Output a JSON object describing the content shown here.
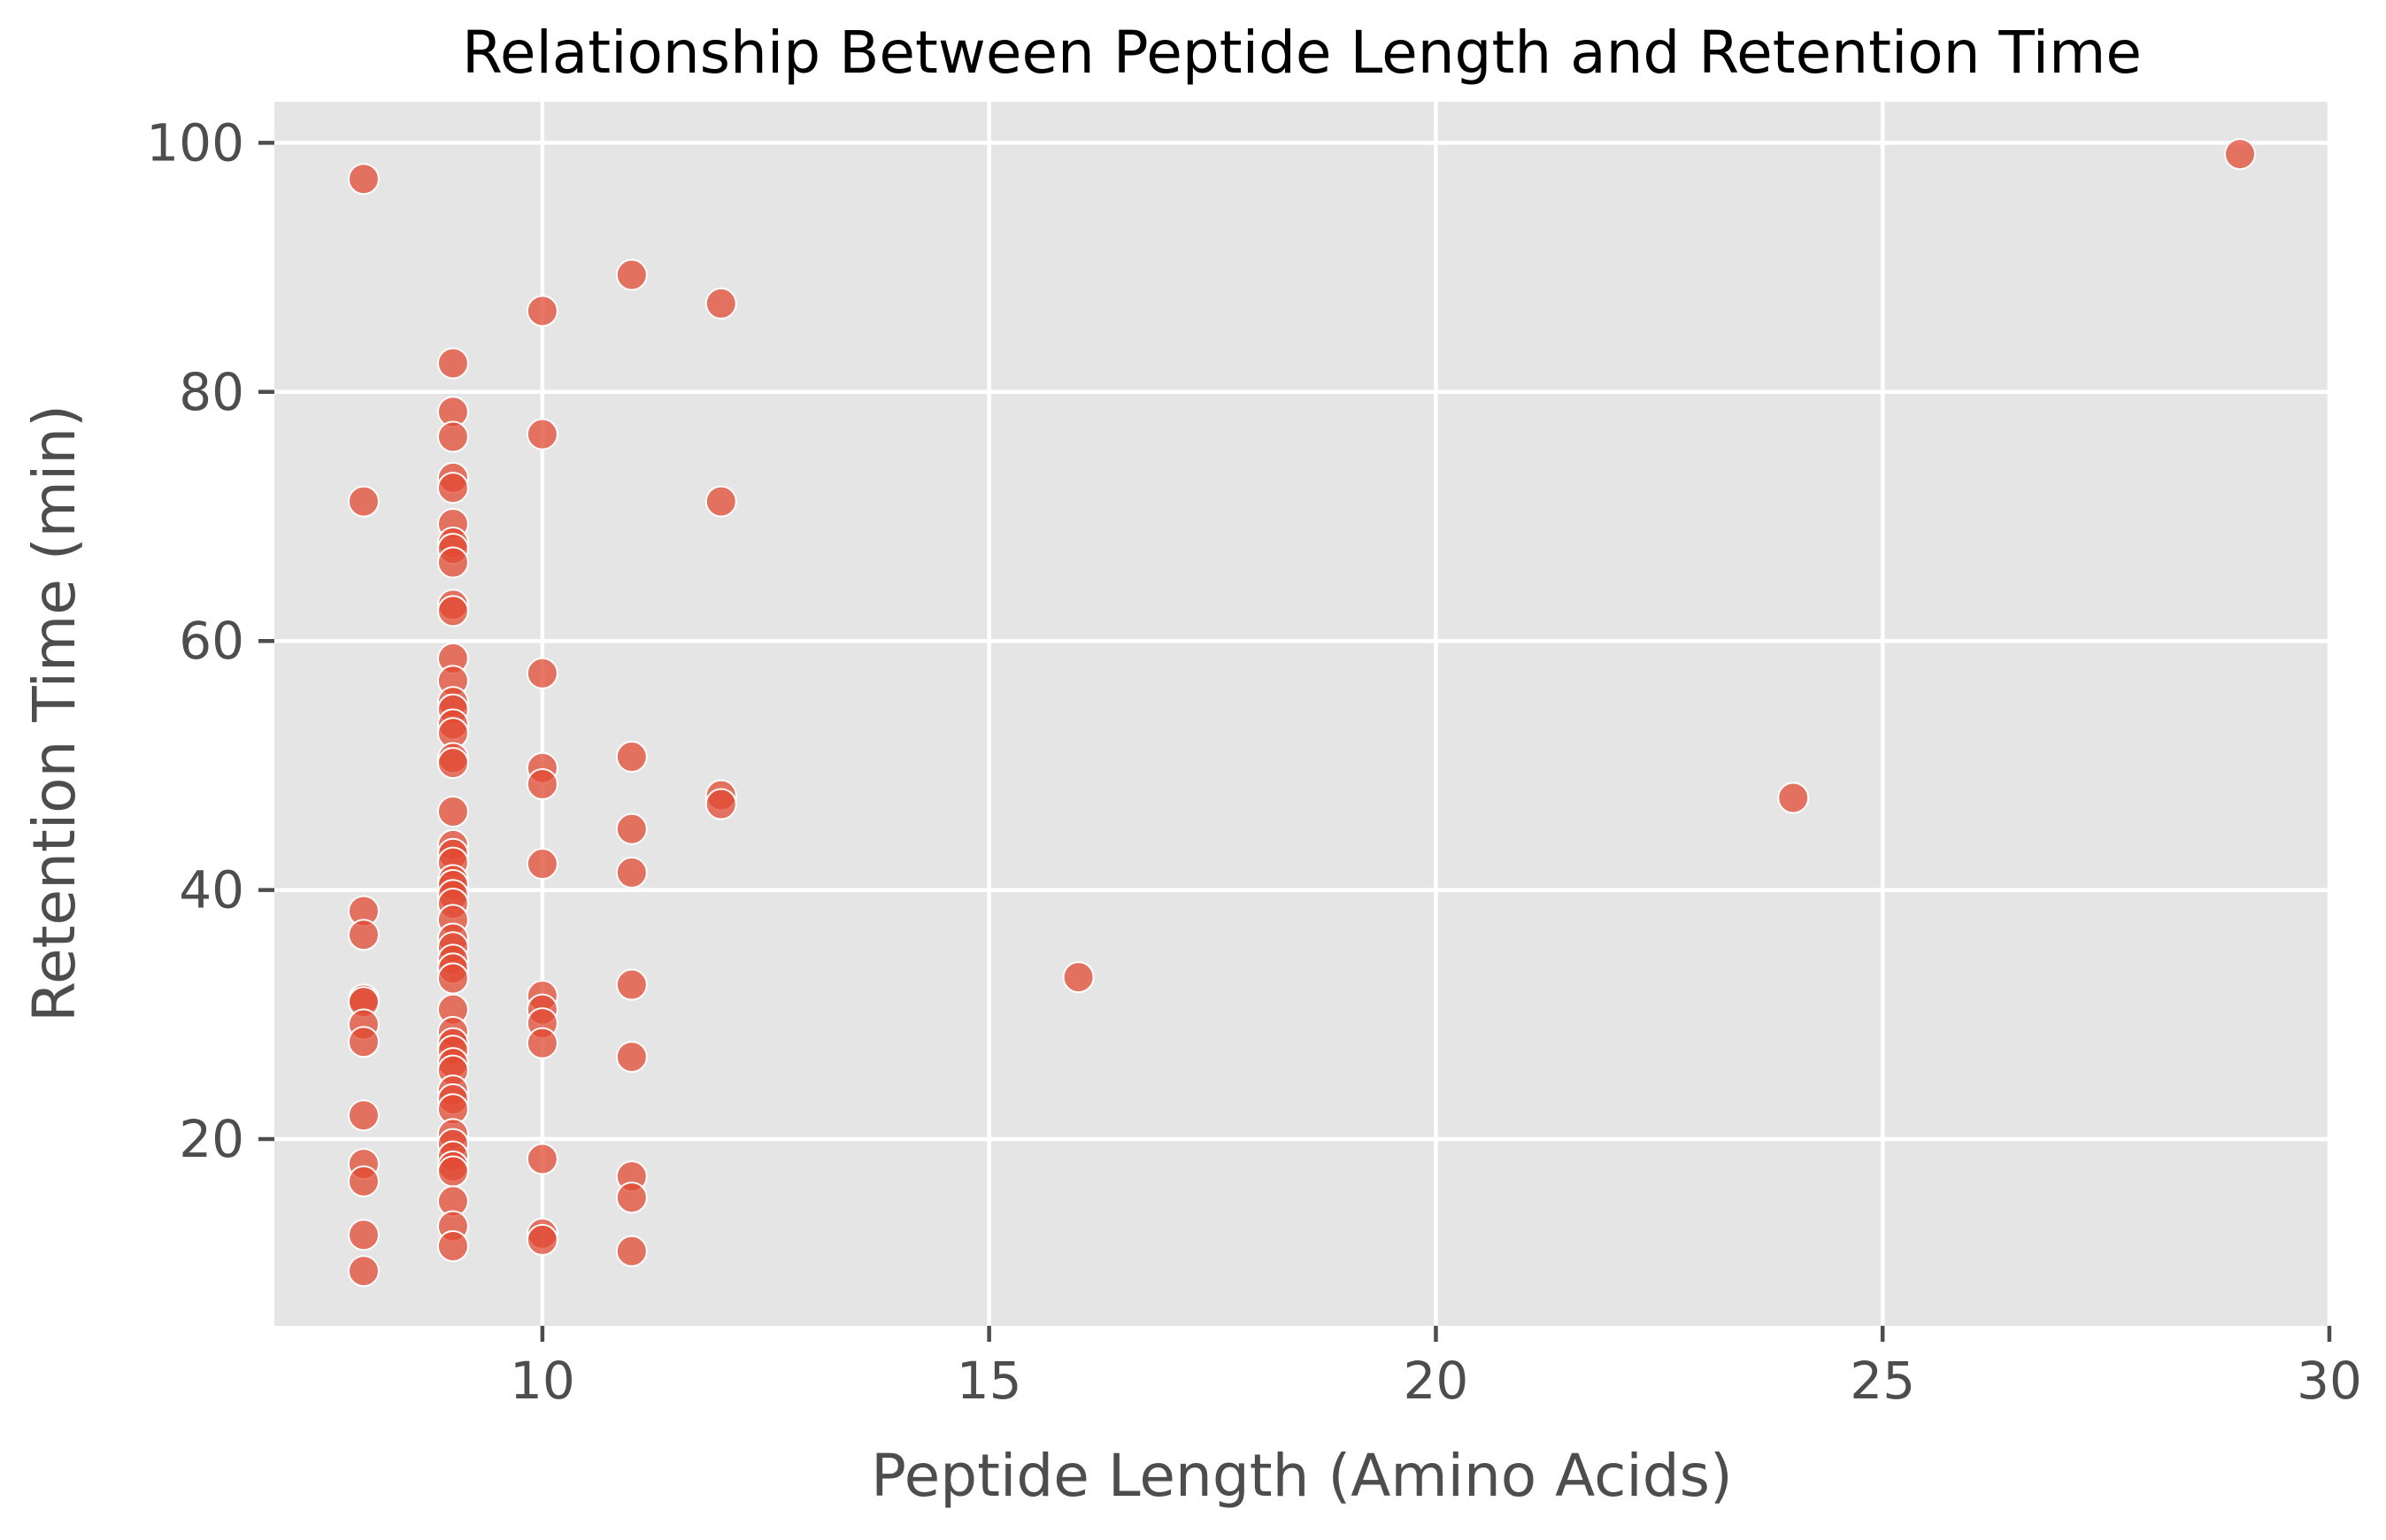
{
  "chart_data": {
    "type": "scatter",
    "title": "Relationship Between Peptide Length and Retention Time",
    "xlabel": "Peptide Length (Amino Acids)",
    "ylabel": "Retention Time (min)",
    "xlim": [
      7,
      30
    ],
    "ylim": [
      5,
      103.3
    ],
    "xticks": [
      10,
      15,
      20,
      25,
      30
    ],
    "yticks": [
      20,
      40,
      60,
      80,
      100
    ],
    "grid": true,
    "legend": "none",
    "colors": {
      "point": "#e24a33",
      "point_edge": "#ffffff",
      "plot_bg": "#e5e5e5",
      "grid": "#ffffff"
    },
    "points": [
      {
        "x": 8,
        "y": 97.1
      },
      {
        "x": 8,
        "y": 71.2
      },
      {
        "x": 8,
        "y": 38.3
      },
      {
        "x": 8,
        "y": 36.4
      },
      {
        "x": 8,
        "y": 31.2
      },
      {
        "x": 8,
        "y": 31.0
      },
      {
        "x": 8,
        "y": 29.2
      },
      {
        "x": 8,
        "y": 27.8
      },
      {
        "x": 8,
        "y": 21.9
      },
      {
        "x": 8,
        "y": 18.0
      },
      {
        "x": 8,
        "y": 16.6
      },
      {
        "x": 8,
        "y": 12.3
      },
      {
        "x": 8,
        "y": 9.4
      },
      {
        "x": 9,
        "y": 82.3
      },
      {
        "x": 9,
        "y": 78.4
      },
      {
        "x": 9,
        "y": 76.4
      },
      {
        "x": 9,
        "y": 73.1
      },
      {
        "x": 9,
        "y": 72.3
      },
      {
        "x": 9,
        "y": 69.4
      },
      {
        "x": 9,
        "y": 67.9
      },
      {
        "x": 9,
        "y": 67.4
      },
      {
        "x": 9,
        "y": 66.3
      },
      {
        "x": 9,
        "y": 62.9
      },
      {
        "x": 9,
        "y": 62.4
      },
      {
        "x": 9,
        "y": 58.6
      },
      {
        "x": 9,
        "y": 56.8
      },
      {
        "x": 9,
        "y": 55.1
      },
      {
        "x": 9,
        "y": 54.5
      },
      {
        "x": 9,
        "y": 53.3
      },
      {
        "x": 9,
        "y": 52.6
      },
      {
        "x": 9,
        "y": 50.6
      },
      {
        "x": 9,
        "y": 50.2
      },
      {
        "x": 9,
        "y": 46.3
      },
      {
        "x": 9,
        "y": 43.6
      },
      {
        "x": 9,
        "y": 42.9
      },
      {
        "x": 9,
        "y": 42.2
      },
      {
        "x": 9,
        "y": 40.8
      },
      {
        "x": 9,
        "y": 40.4
      },
      {
        "x": 9,
        "y": 39.6
      },
      {
        "x": 9,
        "y": 38.9
      },
      {
        "x": 9,
        "y": 37.6
      },
      {
        "x": 9,
        "y": 36.1
      },
      {
        "x": 9,
        "y": 35.4
      },
      {
        "x": 9,
        "y": 34.4
      },
      {
        "x": 9,
        "y": 33.7
      },
      {
        "x": 9,
        "y": 32.9
      },
      {
        "x": 9,
        "y": 30.4
      },
      {
        "x": 9,
        "y": 28.6
      },
      {
        "x": 9,
        "y": 27.7
      },
      {
        "x": 9,
        "y": 27.1
      },
      {
        "x": 9,
        "y": 26.1
      },
      {
        "x": 9,
        "y": 25.5
      },
      {
        "x": 9,
        "y": 23.9
      },
      {
        "x": 9,
        "y": 23.2
      },
      {
        "x": 9,
        "y": 22.4
      },
      {
        "x": 9,
        "y": 20.4
      },
      {
        "x": 9,
        "y": 19.6
      },
      {
        "x": 9,
        "y": 18.6
      },
      {
        "x": 9,
        "y": 17.8
      },
      {
        "x": 9,
        "y": 17.4
      },
      {
        "x": 9,
        "y": 15.0
      },
      {
        "x": 9,
        "y": 13.0
      },
      {
        "x": 9,
        "y": 11.4
      },
      {
        "x": 10,
        "y": 86.5
      },
      {
        "x": 10,
        "y": 76.6
      },
      {
        "x": 10,
        "y": 57.4
      },
      {
        "x": 10,
        "y": 49.8
      },
      {
        "x": 10,
        "y": 48.5
      },
      {
        "x": 10,
        "y": 42.1
      },
      {
        "x": 10,
        "y": 31.5
      },
      {
        "x": 10,
        "y": 30.4
      },
      {
        "x": 10,
        "y": 29.3
      },
      {
        "x": 10,
        "y": 27.7
      },
      {
        "x": 10,
        "y": 18.4
      },
      {
        "x": 10,
        "y": 12.4
      },
      {
        "x": 10,
        "y": 11.9
      },
      {
        "x": 11,
        "y": 89.4
      },
      {
        "x": 11,
        "y": 50.7
      },
      {
        "x": 11,
        "y": 44.9
      },
      {
        "x": 11,
        "y": 41.4
      },
      {
        "x": 11,
        "y": 32.4
      },
      {
        "x": 11,
        "y": 26.6
      },
      {
        "x": 11,
        "y": 17.0
      },
      {
        "x": 11,
        "y": 15.3
      },
      {
        "x": 11,
        "y": 11.0
      },
      {
        "x": 12,
        "y": 87.1
      },
      {
        "x": 12,
        "y": 71.2
      },
      {
        "x": 12,
        "y": 47.6
      },
      {
        "x": 12,
        "y": 46.9
      },
      {
        "x": 16,
        "y": 33.0
      },
      {
        "x": 24,
        "y": 47.4
      },
      {
        "x": 29,
        "y": 99.1
      }
    ]
  }
}
